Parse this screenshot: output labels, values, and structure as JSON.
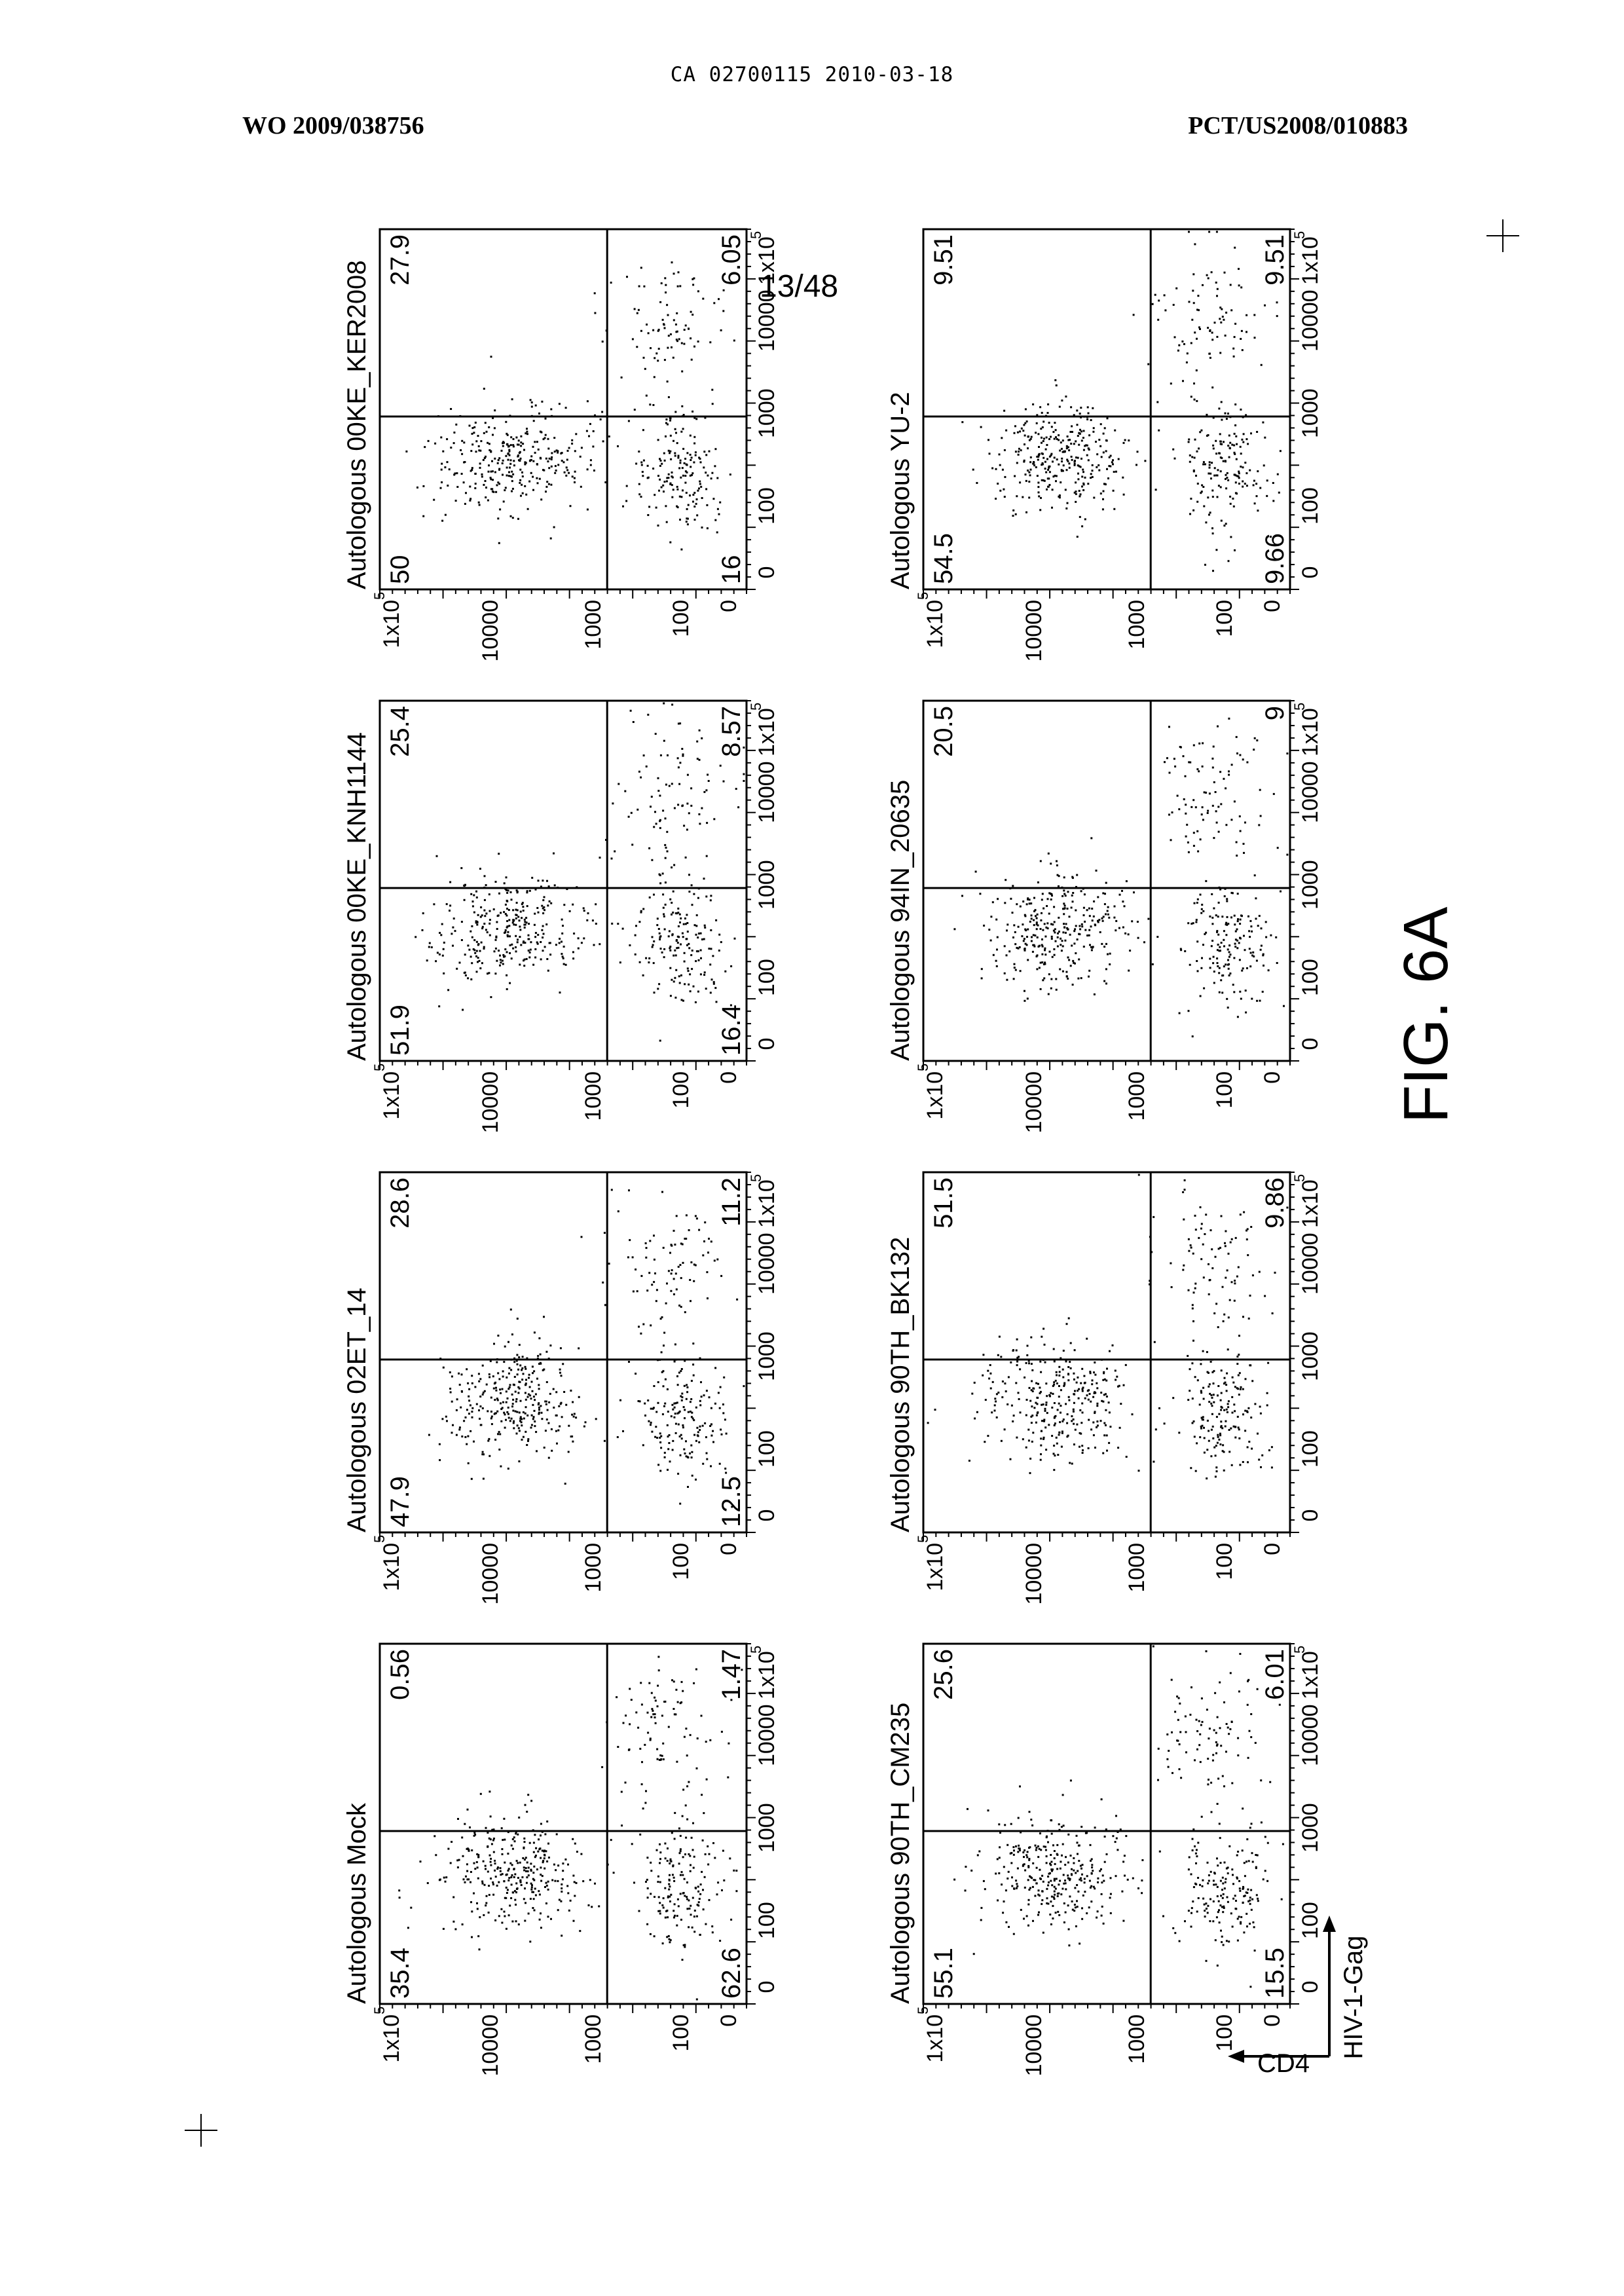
{
  "header": {
    "doc_id": "CA 02700115 2010-03-18",
    "wo_number": "WO 2009/038756",
    "pct_number": "PCT/US2008/010883"
  },
  "page_number": "13/48",
  "figure_label": "FIG. 6A",
  "axes": {
    "vertical_label": "CD4",
    "horizontal_label": "HIV-1-Gag",
    "tick_labels": [
      "0",
      "100",
      "1000",
      "10000",
      "1x10",
      "5"
    ]
  },
  "chart_data": [
    {
      "type": "scatter",
      "title": "Autologous Mock",
      "quadrants": {
        "top_left": "35.4",
        "top_right": "0.56",
        "bottom_left": "62.6",
        "bottom_right": "1.47"
      }
    },
    {
      "type": "scatter",
      "title": "Autologous 02ET_14",
      "quadrants": {
        "top_left": "47.9",
        "top_right": "28.6",
        "bottom_left": "12.5",
        "bottom_right": "11.2"
      }
    },
    {
      "type": "scatter",
      "title": "Autologous 00KE_KNH1144",
      "quadrants": {
        "top_left": "51.9",
        "top_right": "25.4",
        "bottom_left": "16.4",
        "bottom_right": "8.57"
      }
    },
    {
      "type": "scatter",
      "title": "Autologous 00KE_KER2008",
      "quadrants": {
        "top_left": "50",
        "top_right": "27.9",
        "bottom_left": "16",
        "bottom_right": "6.05"
      }
    },
    {
      "type": "scatter",
      "title": "Autologous 90TH_CM235",
      "quadrants": {
        "top_left": "55.1",
        "top_right": "25.6",
        "bottom_left": "15.5",
        "bottom_right": "6.01"
      }
    },
    {
      "type": "scatter",
      "title": "Autologous 90TH_BK132",
      "quadrants": {
        "top_left": "",
        "top_right": "51.5",
        "bottom_left": "",
        "bottom_right": "9.86"
      }
    },
    {
      "type": "scatter",
      "title": "Autologous 94IN_20635",
      "quadrants": {
        "top_left": "",
        "top_right": "20.5",
        "bottom_left": "",
        "bottom_right": "9"
      }
    },
    {
      "type": "scatter",
      "title": "Autologous YU-2",
      "quadrants": {
        "top_left": "54.5",
        "top_right": "9.51",
        "bottom_left": "9.66",
        "bottom_right": "9.51"
      }
    }
  ]
}
